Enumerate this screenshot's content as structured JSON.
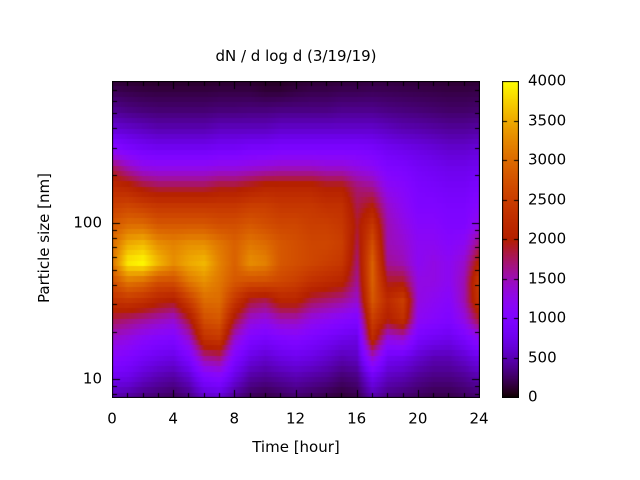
{
  "chart_data": {
    "type": "heatmap",
    "title": "dN / d log d (3/19/19)",
    "xlabel": "Time [hour]",
    "ylabel": "Particle size [nm]",
    "x_range": [
      0,
      24
    ],
    "x_ticks": [
      0,
      4,
      8,
      12,
      16,
      20,
      24
    ],
    "x_minor_step_hours": 1,
    "y_scale": "log",
    "y_range_nm": [
      7.7,
      800
    ],
    "y_ticks": [
      10,
      100
    ],
    "y_minor_mantissas": [
      2,
      3,
      4,
      5,
      6,
      7,
      8,
      9
    ],
    "grid_lines": false,
    "colorbar": {
      "min": 0,
      "max": 4000,
      "ticks": [
        0,
        500,
        1000,
        1500,
        2000,
        2500,
        3000,
        3500,
        4000
      ],
      "palette": "gnuplot rgbformulae 7,5,15 (black-purple-violet-red-orange-yellow)",
      "stops": [
        "#000000",
        "#5a00b4",
        "#8004ff",
        "#9c0db4",
        "#b42000",
        "#ca3e00",
        "#dd6c00",
        "#efab00",
        "#ffff00"
      ],
      "position": "right"
    },
    "grid": {
      "hours": [
        0,
        1,
        2,
        3,
        4,
        5,
        6,
        7,
        8,
        9,
        10,
        11,
        12,
        13,
        14,
        15,
        16,
        17,
        18,
        19,
        20,
        21,
        22,
        23,
        24
      ],
      "sizes_nm": [
        8,
        10.6,
        13.9,
        18.4,
        24.3,
        32.1,
        42.3,
        55.9,
        73.7,
        97.3,
        128,
        170,
        224,
        296,
        390,
        515,
        680,
        897
      ],
      "values": [
        [
          500,
          450,
          350,
          300,
          250,
          350,
          600,
          650,
          400,
          250,
          200,
          250,
          300,
          250,
          200,
          150,
          200,
          500,
          350,
          300,
          250,
          200,
          200,
          250,
          300
        ],
        [
          800,
          750,
          600,
          500,
          450,
          600,
          1000,
          1100,
          700,
          450,
          400,
          450,
          500,
          450,
          400,
          300,
          350,
          800,
          550,
          500,
          400,
          350,
          350,
          400,
          500
        ],
        [
          1100,
          1000,
          850,
          750,
          700,
          950,
          1600,
          1700,
          1000,
          700,
          600,
          700,
          750,
          700,
          600,
          500,
          550,
          1400,
          800,
          750,
          600,
          500,
          500,
          600,
          750
        ],
        [
          1400,
          1300,
          1150,
          1050,
          1000,
          1400,
          2300,
          2400,
          1400,
          1000,
          900,
          1000,
          1050,
          950,
          850,
          750,
          700,
          2200,
          1300,
          1400,
          900,
          800,
          750,
          900,
          1200
        ],
        [
          1800,
          1700,
          1600,
          1500,
          1400,
          1900,
          2700,
          2800,
          1900,
          1400,
          1300,
          1500,
          1500,
          1300,
          1200,
          1100,
          1000,
          2500,
          2000,
          2300,
          1200,
          1100,
          1000,
          1300,
          1900
        ],
        [
          2300,
          2400,
          2300,
          2100,
          2000,
          2500,
          3000,
          3000,
          2400,
          1900,
          1800,
          2100,
          2100,
          1800,
          1700,
          1600,
          1400,
          2800,
          2200,
          2500,
          1300,
          1200,
          1100,
          1500,
          2400
        ],
        [
          2700,
          3100,
          3000,
          2700,
          2700,
          3100,
          3300,
          3100,
          2800,
          2700,
          2700,
          2600,
          2500,
          2300,
          2200,
          2100,
          1600,
          2900,
          1900,
          1900,
          1300,
          1300,
          1200,
          1500,
          2500
        ],
        [
          3100,
          3900,
          4000,
          3600,
          3300,
          3500,
          3600,
          3200,
          2900,
          3300,
          3200,
          2800,
          2700,
          2600,
          2500,
          2400,
          1700,
          2900,
          1600,
          1500,
          1200,
          1300,
          1200,
          1400,
          2100
        ],
        [
          3000,
          3500,
          3600,
          3300,
          3200,
          3300,
          3300,
          3100,
          2900,
          3100,
          3000,
          2800,
          2700,
          2600,
          2600,
          2500,
          1800,
          2700,
          1500,
          1400,
          1200,
          1200,
          1100,
          1200,
          1700
        ],
        [
          2800,
          3000,
          3000,
          2800,
          2800,
          2800,
          2800,
          2700,
          2700,
          2800,
          2700,
          2600,
          2600,
          2500,
          2500,
          2400,
          1900,
          2400,
          1500,
          1300,
          1100,
          1100,
          1000,
          1000,
          1300
        ],
        [
          2500,
          2600,
          2500,
          2400,
          2400,
          2400,
          2400,
          2400,
          2400,
          2500,
          2500,
          2400,
          2400,
          2400,
          2300,
          2300,
          1800,
          2000,
          1400,
          1200,
          1000,
          1000,
          950,
          950,
          1100
        ],
        [
          2200,
          2100,
          1900,
          1800,
          1800,
          1800,
          1800,
          1900,
          1900,
          2000,
          2100,
          2100,
          2100,
          2100,
          2000,
          2000,
          1700,
          1600,
          1200,
          1100,
          950,
          900,
          850,
          850,
          950
        ],
        [
          1800,
          1500,
          1300,
          1250,
          1250,
          1250,
          1250,
          1300,
          1300,
          1350,
          1400,
          1450,
          1450,
          1450,
          1400,
          1400,
          1300,
          1200,
          1000,
          950,
          850,
          800,
          750,
          750,
          800
        ],
        [
          1100,
          950,
          850,
          800,
          800,
          800,
          800,
          850,
          850,
          900,
          900,
          950,
          950,
          950,
          950,
          950,
          950,
          900,
          800,
          750,
          700,
          650,
          600,
          600,
          650
        ],
        [
          650,
          600,
          550,
          500,
          500,
          500,
          500,
          550,
          550,
          550,
          550,
          600,
          600,
          600,
          600,
          600,
          600,
          600,
          550,
          500,
          480,
          450,
          420,
          420,
          450
        ],
        [
          400,
          350,
          320,
          300,
          300,
          300,
          300,
          320,
          320,
          330,
          330,
          350,
          350,
          350,
          350,
          380,
          380,
          380,
          350,
          330,
          310,
          290,
          270,
          270,
          290
        ],
        [
          220,
          200,
          180,
          170,
          170,
          170,
          170,
          180,
          180,
          180,
          150,
          150,
          180,
          200,
          200,
          220,
          220,
          230,
          220,
          210,
          200,
          190,
          180,
          180,
          190
        ],
        [
          80,
          70,
          60,
          60,
          60,
          60,
          60,
          70,
          70,
          70,
          40,
          40,
          70,
          90,
          90,
          100,
          100,
          120,
          120,
          110,
          100,
          100,
          90,
          90,
          100
        ]
      ]
    }
  }
}
